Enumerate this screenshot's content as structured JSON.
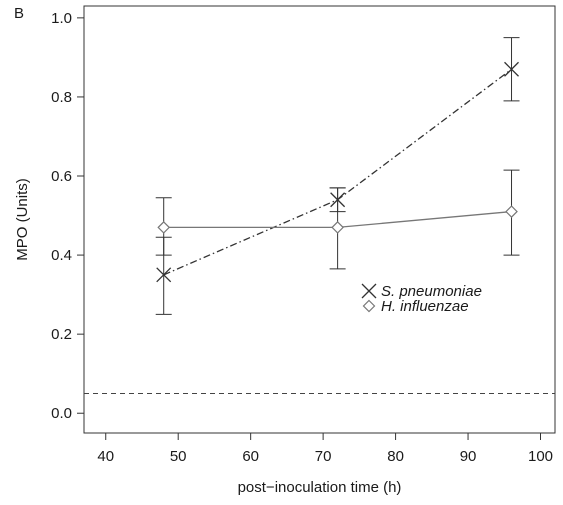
{
  "panel_label": "B",
  "chart_data": {
    "type": "line",
    "xlabel": "post−inoculation time (h)",
    "ylabel": "MPO (Units)",
    "xlim": [
      37,
      102
    ],
    "ylim": [
      -0.05,
      1.03
    ],
    "xticks": [
      40,
      50,
      60,
      70,
      80,
      90,
      100
    ],
    "yticks": [
      0.0,
      0.2,
      0.4,
      0.6,
      0.8,
      1.0
    ],
    "xtick_labels": [
      "40",
      "50",
      "60",
      "70",
      "80",
      "90",
      "100"
    ],
    "ytick_labels": [
      "0.0",
      "0.2",
      "0.4",
      "0.6",
      "0.8",
      "1.0"
    ],
    "grid": false,
    "legend_position": "center-right",
    "reference_line": {
      "y": 0.05,
      "style": "dashed"
    },
    "series": [
      {
        "name": "S. pneumoniae",
        "marker": "cross",
        "line_style": "dash-dot",
        "color": "#333333",
        "x": [
          48,
          72,
          96
        ],
        "y": [
          0.35,
          0.54,
          0.87
        ],
        "err_low": [
          0.25,
          0.51,
          0.79
        ],
        "err_high": [
          0.445,
          0.57,
          0.95
        ]
      },
      {
        "name": "H. influenzae",
        "marker": "diamond",
        "line_style": "solid",
        "color": "#777777",
        "x": [
          48,
          72,
          96
        ],
        "y": [
          0.47,
          0.47,
          0.51
        ],
        "err_low": [
          0.4,
          0.365,
          0.4
        ],
        "err_high": [
          0.545,
          0.57,
          0.615
        ]
      }
    ]
  }
}
